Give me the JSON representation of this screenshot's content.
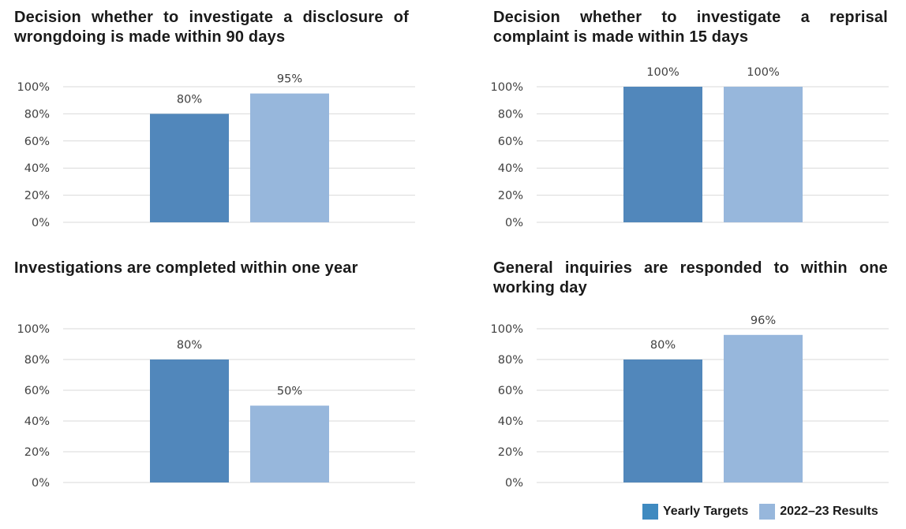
{
  "colors": {
    "target": "#5187bb",
    "result": "#97b7dc",
    "grid": "#d9d9d9",
    "legend_target": "#3f8ac0"
  },
  "legend": [
    {
      "label": "Yearly Targets",
      "color": "#3f8ac0"
    },
    {
      "label": "2022–23 Results",
      "color": "#97b7dc"
    }
  ],
  "chart_data": [
    {
      "type": "bar",
      "title": "Decision whether to investigate a disclosure of wrongdoing is made within 90 days",
      "categories": [
        "Yearly Targets",
        "2022–23 Results"
      ],
      "values": [
        80,
        95
      ],
      "labels": [
        "80%",
        "95%"
      ],
      "ylim": [
        0,
        100
      ],
      "yticks": [
        "0%",
        "20%",
        "40%",
        "60%",
        "80%",
        "100%"
      ],
      "grid": true
    },
    {
      "type": "bar",
      "title": "Decision whether to investigate a reprisal complaint is made within 15 days",
      "categories": [
        "Yearly Targets",
        "2022–23 Results"
      ],
      "values": [
        100,
        100
      ],
      "labels": [
        "100%",
        "100%"
      ],
      "ylim": [
        0,
        100
      ],
      "yticks": [
        "0%",
        "20%",
        "40%",
        "60%",
        "80%",
        "100%"
      ],
      "grid": true
    },
    {
      "type": "bar",
      "title": "Investigations are completed within one year",
      "categories": [
        "Yearly Targets",
        "2022–23 Results"
      ],
      "values": [
        80,
        50
      ],
      "labels": [
        "80%",
        "50%"
      ],
      "ylim": [
        0,
        100
      ],
      "yticks": [
        "0%",
        "20%",
        "40%",
        "60%",
        "80%",
        "100%"
      ],
      "grid": true
    },
    {
      "type": "bar",
      "title": "General inquiries are responded to within one working day",
      "categories": [
        "Yearly Targets",
        "2022–23 Results"
      ],
      "values": [
        80,
        96
      ],
      "labels": [
        "80%",
        "96%"
      ],
      "ylim": [
        0,
        100
      ],
      "yticks": [
        "0%",
        "20%",
        "40%",
        "60%",
        "80%",
        "100%"
      ],
      "grid": true
    }
  ]
}
